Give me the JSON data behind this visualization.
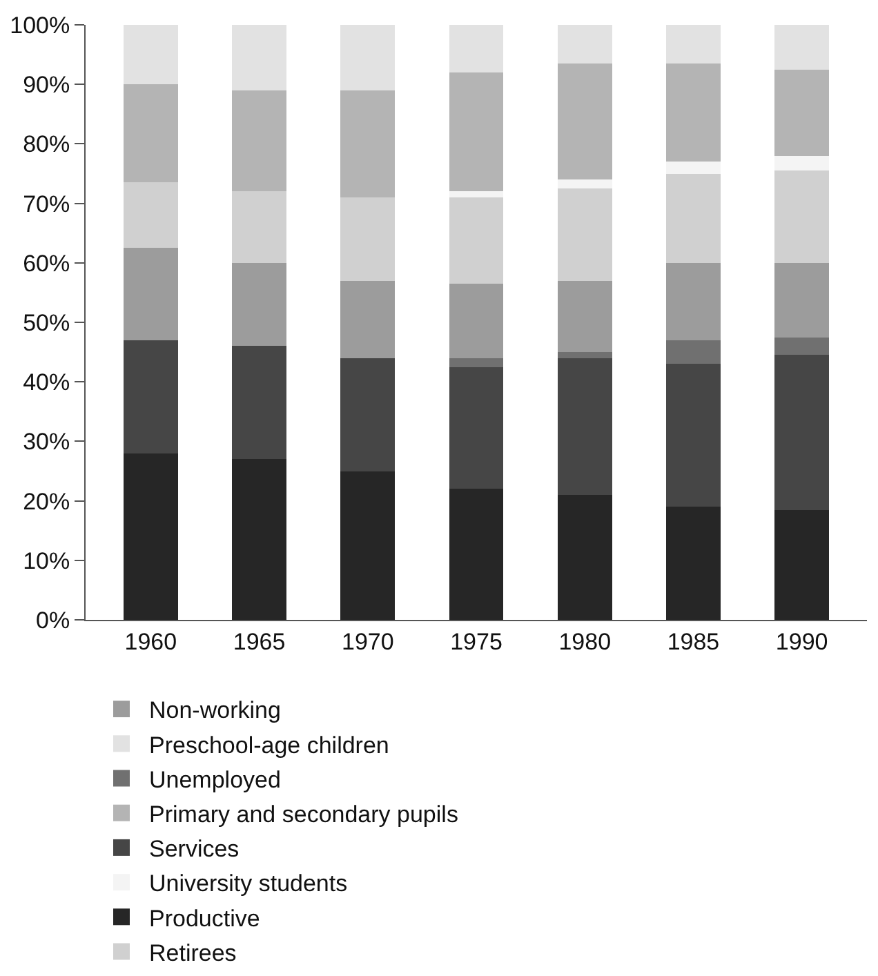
{
  "chart_data": {
    "type": "bar",
    "stacked": true,
    "categories": [
      "1960",
      "1965",
      "1970",
      "1975",
      "1980",
      "1985",
      "1990"
    ],
    "series": [
      {
        "name": "Productive",
        "color": "#262626",
        "values": [
          28,
          27,
          25,
          22,
          21,
          19,
          18.5
        ]
      },
      {
        "name": "Services",
        "color": "#464646",
        "values": [
          19,
          19,
          19,
          20.5,
          23,
          24,
          26
        ]
      },
      {
        "name": "Unemployed",
        "color": "#707070",
        "values": [
          0,
          0,
          0,
          1.5,
          1,
          4,
          3
        ]
      },
      {
        "name": "Non-working",
        "color": "#9c9c9c",
        "values": [
          15.5,
          14,
          13,
          12.5,
          12,
          13,
          12.5
        ]
      },
      {
        "name": "Retirees",
        "color": "#d0d0d0",
        "values": [
          11,
          12,
          14,
          14.5,
          15.5,
          15,
          15.5
        ]
      },
      {
        "name": "University students",
        "color": "#f4f4f4",
        "values": [
          0,
          0,
          0,
          1,
          1.5,
          2,
          2.5
        ]
      },
      {
        "name": "Primary and secondary pupils",
        "color": "#b4b4b4",
        "values": [
          16.5,
          17,
          18,
          20,
          19.5,
          16.5,
          14.5
        ]
      },
      {
        "name": "Preschool-age children",
        "color": "#e2e2e2",
        "values": [
          10,
          11,
          11,
          8,
          6.5,
          6.5,
          7.5
        ]
      }
    ],
    "ylim": [
      0,
      100
    ],
    "yticks": [
      {
        "value": 0,
        "label": "0%"
      },
      {
        "value": 10,
        "label": "10%"
      },
      {
        "value": 20,
        "label": "20%"
      },
      {
        "value": 30,
        "label": "30%"
      },
      {
        "value": 40,
        "label": "40%"
      },
      {
        "value": 50,
        "label": "50%"
      },
      {
        "value": 60,
        "label": "60%"
      },
      {
        "value": 70,
        "label": "70%"
      },
      {
        "value": 80,
        "label": "80%"
      },
      {
        "value": 90,
        "label": "90%"
      },
      {
        "value": 100,
        "label": "100%"
      }
    ],
    "legend": "bottom"
  }
}
